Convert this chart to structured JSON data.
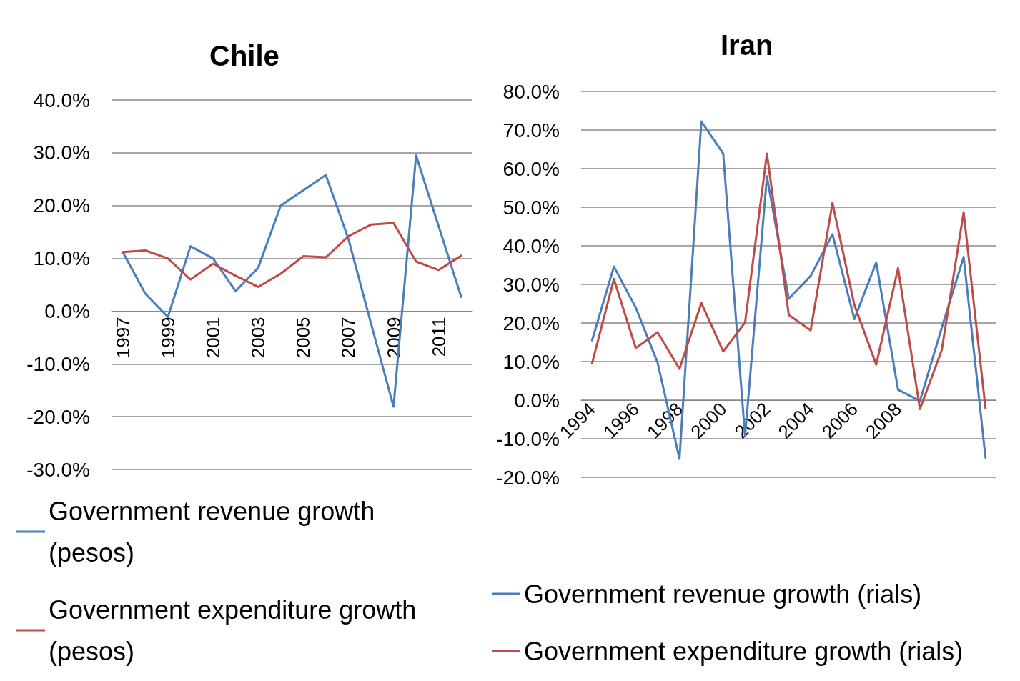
{
  "chart_data": [
    {
      "type": "line",
      "title": "Chile",
      "categories": [
        "1997",
        null,
        "1999",
        null,
        "2001",
        null,
        "2003",
        null,
        "2005",
        null,
        "2007",
        null,
        "2009",
        null,
        "2011",
        null
      ],
      "series": [
        {
          "name": "Government revenue growth (pesos)",
          "color": "#4a7ebb",
          "values": [
            11.2,
            3.3,
            -1.1,
            12.3,
            10,
            3.8,
            8.2,
            20,
            22.9,
            25.8,
            13.7,
            -2.3,
            -18.1,
            29.5,
            16.1,
            2.7
          ]
        },
        {
          "name": "Government expenditure growth (pesos)",
          "color": "#be4b48",
          "values": [
            11.2,
            11.5,
            10,
            6,
            9,
            6.7,
            4.6,
            7.1,
            10.4,
            10.2,
            14.2,
            16.4,
            16.7,
            9.4,
            7.8,
            10.5
          ]
        }
      ],
      "ylim": [
        -30,
        40
      ],
      "yticks": [
        {
          "value": -30,
          "label": "-30.0%"
        },
        {
          "value": -20,
          "label": "-20.0%"
        },
        {
          "value": -10,
          "label": "-10.0%"
        },
        {
          "value": 0,
          "label": "0.0%"
        },
        {
          "value": 10,
          "label": "10.0%"
        },
        {
          "value": 20,
          "label": "20.0%"
        },
        {
          "value": 30,
          "label": "30.0%"
        },
        {
          "value": 40,
          "label": "40.0%"
        }
      ],
      "grid": "y",
      "legend": "bottom",
      "marker": "none",
      "line_style": "solid"
    },
    {
      "type": "line",
      "title": "Iran",
      "categories": [
        "1994",
        null,
        "1996",
        null,
        "1998",
        null,
        "2000",
        null,
        "2002",
        null,
        "2004",
        null,
        "2006",
        null,
        "2008",
        null,
        null,
        null,
        null
      ],
      "series": [
        {
          "name": "Government revenue growth (rials)",
          "color": "#4a7ebb",
          "values": [
            15.5,
            34.6,
            24,
            9.7,
            -15.2,
            72.2,
            63.9,
            -9.4,
            58,
            26.3,
            32.2,
            43,
            21,
            35.7,
            2.7,
            -0.2,
            18.8,
            37.1,
            -14.9
          ]
        },
        {
          "name": "Government expenditure growth (rials)",
          "color": "#be4b48",
          "values": [
            9.5,
            31.4,
            13.5,
            17.6,
            8.1,
            25.2,
            12.6,
            20.1,
            63.9,
            22.1,
            18.1,
            51.1,
            24.7,
            9.2,
            34.2,
            -2.3,
            13,
            48.7,
            -2.1
          ]
        }
      ],
      "ylim": [
        -20,
        80
      ],
      "yticks": [
        {
          "value": -20,
          "label": "-20.0%"
        },
        {
          "value": -10,
          "label": "-10.0%"
        },
        {
          "value": 0,
          "label": "0.0%"
        },
        {
          "value": 10,
          "label": "10.0%"
        },
        {
          "value": 20,
          "label": "20.0%"
        },
        {
          "value": 30,
          "label": "30.0%"
        },
        {
          "value": 40,
          "label": "40.0%"
        },
        {
          "value": 50,
          "label": "50.0%"
        },
        {
          "value": 60,
          "label": "60.0%"
        },
        {
          "value": 70,
          "label": "70.0%"
        },
        {
          "value": 80,
          "label": "80.0%"
        }
      ],
      "grid": "y",
      "legend": "bottom",
      "marker": "none",
      "line_style": "solid"
    }
  ]
}
